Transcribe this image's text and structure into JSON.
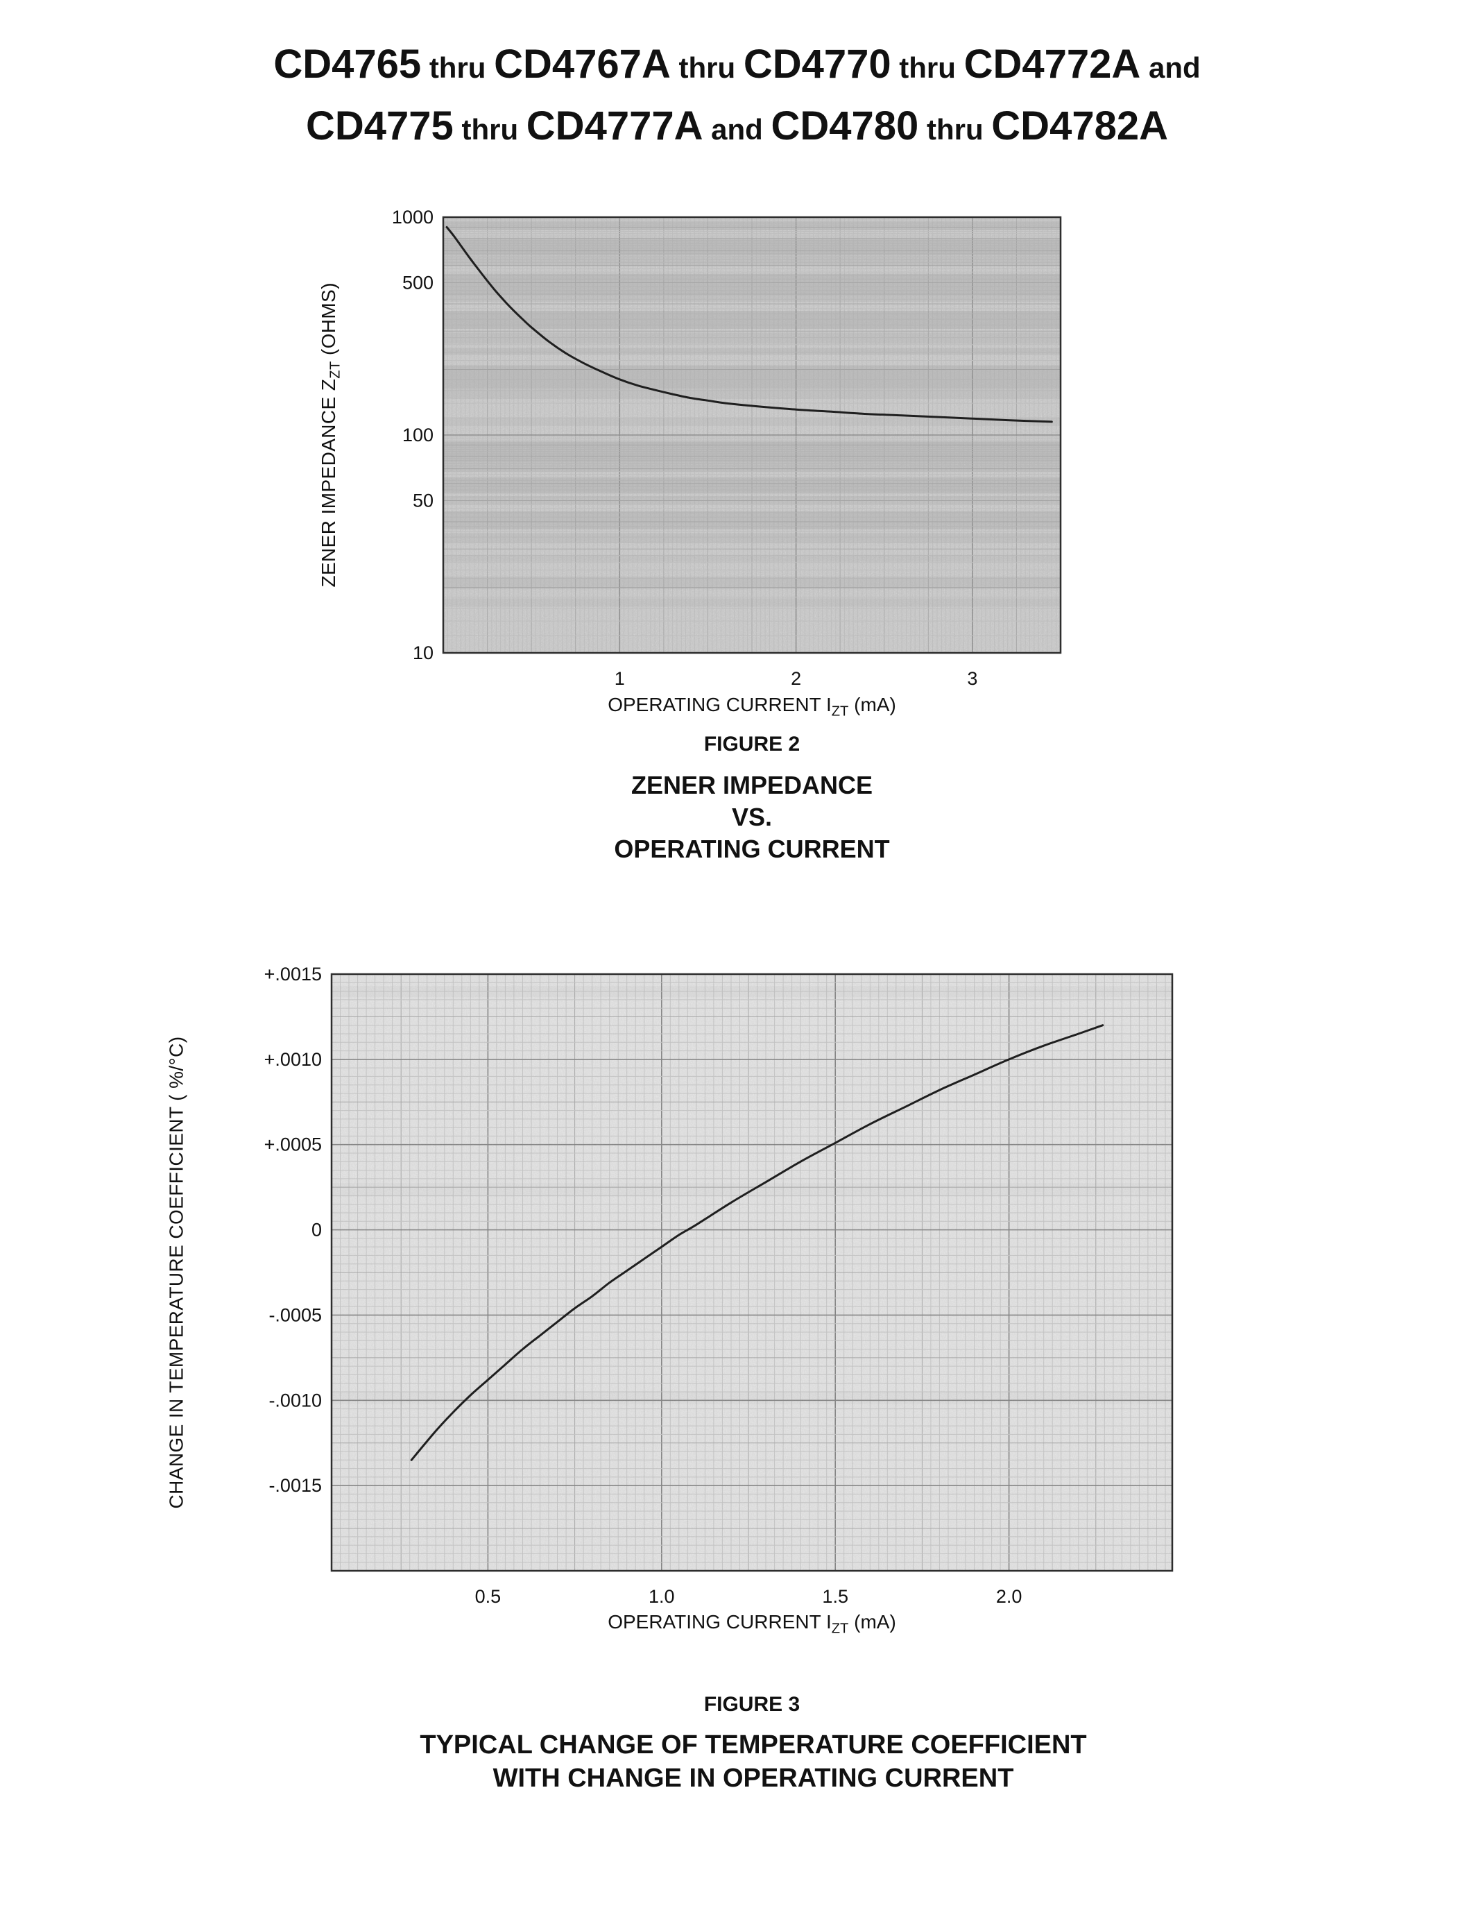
{
  "title": {
    "line1": [
      {
        "text": "CD4765",
        "size": "lg"
      },
      {
        "text": " thru ",
        "size": "sm"
      },
      {
        "text": "CD4767A",
        "size": "lg"
      },
      {
        "text": " thru ",
        "size": "sm"
      },
      {
        "text": "CD4770",
        "size": "lg"
      },
      {
        "text": " thru ",
        "size": "sm"
      },
      {
        "text": "CD4772A",
        "size": "lg"
      },
      {
        "text": " and",
        "size": "sm"
      }
    ],
    "line2": [
      {
        "text": "CD4775",
        "size": "lg"
      },
      {
        "text": " thru ",
        "size": "sm"
      },
      {
        "text": "CD4777A",
        "size": "lg"
      },
      {
        "text": " and ",
        "size": "sm"
      },
      {
        "text": "CD4780",
        "size": "lg"
      },
      {
        "text": " thru ",
        "size": "sm"
      },
      {
        "text": "CD4782A",
        "size": "lg"
      }
    ]
  },
  "figure2": {
    "ylabel_pre": "ZENER IMPEDANCE Z",
    "ylabel_sub": "ZT",
    "ylabel_post": " (OHMS)",
    "xlabel_pre": "OPERATING CURRENT I",
    "xlabel_sub": "ZT",
    "xlabel_post": " (mA)",
    "caption": "FIGURE 2",
    "title1": "ZENER IMPEDANCE",
    "title2": "VS.",
    "title3": "OPERATING CURRENT"
  },
  "figure3": {
    "ylabel": "CHANGE IN TEMPERATURE COEFFICIENT ( %/°C)",
    "xlabel_pre": "OPERATING CURRENT I",
    "xlabel_sub": "ZT",
    "xlabel_post": " (mA)",
    "caption": "FIGURE 3",
    "title1": "TYPICAL CHANGE OF TEMPERATURE COEFFICIENT",
    "title2": "WITH CHANGE IN OPERATING CURRENT"
  },
  "chart_data": [
    {
      "id": "fig2",
      "type": "line",
      "title": "ZENER IMPEDANCE VS. OPERATING CURRENT",
      "xlabel": "OPERATING CURRENT IZT (mA)",
      "ylabel": "ZENER IMPEDANCE ZZT (OHMS)",
      "x_scale": "linear",
      "y_scale": "log",
      "xlim": [
        0,
        3.5
      ],
      "ylim": [
        10,
        1000
      ],
      "grid": true,
      "x_ticks": {
        "values": [
          1,
          2,
          3
        ],
        "labels": [
          "1",
          "2",
          "3"
        ]
      },
      "y_ticks": {
        "values": [
          1000,
          500,
          100,
          50,
          10
        ],
        "labels": [
          "1000",
          "500",
          "100",
          "50",
          "10"
        ]
      },
      "series": [
        {
          "name": "zener-impedance",
          "x": [
            0.02,
            0.06,
            0.1,
            0.15,
            0.2,
            0.25,
            0.3,
            0.35,
            0.4,
            0.45,
            0.5,
            0.6,
            0.7,
            0.8,
            0.9,
            1.0,
            1.1,
            1.2,
            1.3,
            1.4,
            1.5,
            1.6,
            1.8,
            2.0,
            2.2,
            2.4,
            2.6,
            2.8,
            3.0,
            3.2,
            3.45
          ],
          "y": [
            900,
            820,
            740,
            650,
            575,
            510,
            455,
            410,
            372,
            340,
            312,
            268,
            236,
            213,
            195,
            180,
            169,
            161,
            154,
            148,
            144,
            140,
            135,
            131,
            128,
            125,
            123,
            121,
            119,
            117,
            115
          ]
        }
      ]
    },
    {
      "id": "fig3",
      "type": "line",
      "title": "TYPICAL CHANGE OF TEMPERATURE COEFFICIENT WITH CHANGE IN OPERATING CURRENT",
      "xlabel": "OPERATING CURRENT IZT (mA)",
      "ylabel": "CHANGE IN TEMPERATURE COEFFICIENT (%/°C)",
      "x_scale": "linear",
      "y_scale": "linear",
      "xlim": [
        0.05,
        2.47
      ],
      "ylim": [
        -0.002,
        0.0015
      ],
      "grid": true,
      "x_ticks": {
        "values": [
          0.5,
          1.0,
          1.5,
          2.0
        ],
        "labels": [
          "0.5",
          "1.0",
          "1.5",
          "2.0"
        ]
      },
      "y_ticks": {
        "values": [
          0.0015,
          0.001,
          0.0005,
          0,
          -0.0005,
          -0.001,
          -0.0015
        ],
        "labels": [
          "+.0015",
          "+.0010",
          "+.0005",
          "0",
          "-.0005",
          "-.0010",
          "-.0015"
        ]
      },
      "series": [
        {
          "name": "temperature-coefficient-change",
          "x": [
            0.28,
            0.35,
            0.4,
            0.45,
            0.5,
            0.55,
            0.6,
            0.65,
            0.7,
            0.75,
            0.8,
            0.85,
            0.9,
            0.95,
            1.0,
            1.05,
            1.1,
            1.2,
            1.3,
            1.4,
            1.5,
            1.6,
            1.7,
            1.8,
            1.9,
            2.0,
            2.1,
            2.2,
            2.27
          ],
          "y": [
            -0.00135,
            -0.00118,
            -0.00107,
            -0.00097,
            -0.00088,
            -0.00079,
            -0.0007,
            -0.00062,
            -0.00054,
            -0.00046,
            -0.00039,
            -0.00031,
            -0.00024,
            -0.00017,
            -0.0001,
            -3e-05,
            3e-05,
            0.00016,
            0.00028,
            0.0004,
            0.00051,
            0.00062,
            0.00072,
            0.00082,
            0.00091,
            0.001,
            0.00108,
            0.00115,
            0.0012
          ]
        }
      ]
    }
  ]
}
